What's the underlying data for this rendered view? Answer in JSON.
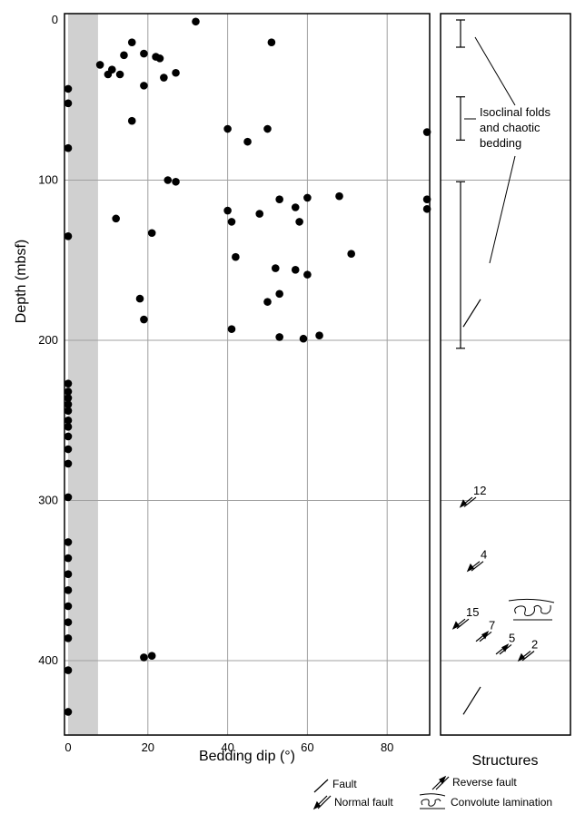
{
  "chart_data": {
    "type": "scatter",
    "xlabel": "Bedding dip (°)",
    "ylabel": "Depth (mbsf)",
    "xlim": [
      0,
      90
    ],
    "ylim": [
      450,
      0
    ],
    "x_ticks": [
      "0",
      "20",
      "40",
      "60",
      "80"
    ],
    "y_ticks": [
      "0",
      "100",
      "200",
      "300",
      "400"
    ],
    "grid": true,
    "shaded_band": {
      "from": 0,
      "to": 7.5,
      "color": "#d0d0d0"
    },
    "points": [
      {
        "x": 32,
        "y": 1
      },
      {
        "x": 51,
        "y": 14
      },
      {
        "x": 16,
        "y": 14
      },
      {
        "x": 19,
        "y": 21
      },
      {
        "x": 14,
        "y": 22
      },
      {
        "x": 22,
        "y": 23
      },
      {
        "x": 23,
        "y": 24
      },
      {
        "x": 8,
        "y": 28
      },
      {
        "x": 11,
        "y": 31
      },
      {
        "x": 10,
        "y": 34
      },
      {
        "x": 13,
        "y": 34
      },
      {
        "x": 27,
        "y": 33
      },
      {
        "x": 24,
        "y": 36
      },
      {
        "x": 19,
        "y": 41
      },
      {
        "x": 0,
        "y": 43
      },
      {
        "x": 0,
        "y": 52
      },
      {
        "x": 16,
        "y": 63
      },
      {
        "x": 40,
        "y": 68
      },
      {
        "x": 50,
        "y": 68
      },
      {
        "x": 90,
        "y": 70
      },
      {
        "x": 45,
        "y": 76
      },
      {
        "x": 0,
        "y": 80
      },
      {
        "x": 25,
        "y": 100
      },
      {
        "x": 27,
        "y": 101
      },
      {
        "x": 68,
        "y": 110
      },
      {
        "x": 53,
        "y": 112
      },
      {
        "x": 60,
        "y": 111
      },
      {
        "x": 90,
        "y": 112
      },
      {
        "x": 57,
        "y": 117
      },
      {
        "x": 90,
        "y": 118
      },
      {
        "x": 40,
        "y": 119
      },
      {
        "x": 48,
        "y": 121
      },
      {
        "x": 41,
        "y": 126
      },
      {
        "x": 58,
        "y": 126
      },
      {
        "x": 12,
        "y": 124
      },
      {
        "x": 21,
        "y": 133
      },
      {
        "x": 0,
        "y": 135
      },
      {
        "x": 71,
        "y": 146
      },
      {
        "x": 42,
        "y": 148
      },
      {
        "x": 52,
        "y": 155
      },
      {
        "x": 57,
        "y": 156
      },
      {
        "x": 60,
        "y": 159
      },
      {
        "x": 53,
        "y": 171
      },
      {
        "x": 18,
        "y": 174
      },
      {
        "x": 50,
        "y": 176
      },
      {
        "x": 19,
        "y": 187
      },
      {
        "x": 41,
        "y": 193
      },
      {
        "x": 53,
        "y": 198
      },
      {
        "x": 59,
        "y": 199
      },
      {
        "x": 63,
        "y": 197
      },
      {
        "x": 0,
        "y": 227
      },
      {
        "x": 0,
        "y": 232
      },
      {
        "x": 0,
        "y": 236
      },
      {
        "x": 0,
        "y": 240
      },
      {
        "x": 0,
        "y": 244
      },
      {
        "x": 0,
        "y": 250
      },
      {
        "x": 0,
        "y": 254
      },
      {
        "x": 0,
        "y": 260
      },
      {
        "x": 0,
        "y": 268
      },
      {
        "x": 0,
        "y": 277
      },
      {
        "x": 0,
        "y": 298
      },
      {
        "x": 0,
        "y": 326
      },
      {
        "x": 0,
        "y": 336
      },
      {
        "x": 0,
        "y": 346
      },
      {
        "x": 0,
        "y": 356
      },
      {
        "x": 0,
        "y": 366
      },
      {
        "x": 0,
        "y": 376
      },
      {
        "x": 0,
        "y": 386
      },
      {
        "x": 19,
        "y": 398
      },
      {
        "x": 21,
        "y": 397
      },
      {
        "x": 0,
        "y": 406
      },
      {
        "x": 0,
        "y": 432
      }
    ]
  },
  "structures": {
    "title": "Structures",
    "annotation_lines": [
      "Isoclinal folds",
      "and chaotic",
      "bedding"
    ],
    "fold_intervals": [
      [
        0,
        17
      ],
      [
        48,
        75
      ],
      [
        101,
        205
      ]
    ],
    "faults": [
      {
        "type": "fault",
        "depth": 183
      },
      {
        "type": "normal",
        "depth": 301,
        "label": "12"
      },
      {
        "type": "normal",
        "depth": 341,
        "label": "4"
      },
      {
        "type": "normal",
        "depth": 377,
        "label": "15"
      },
      {
        "type": "reverse",
        "depth": 385,
        "label": "7"
      },
      {
        "type": "reverse",
        "depth": 393,
        "label": "5"
      },
      {
        "type": "normal",
        "depth": 397,
        "label": "2"
      },
      {
        "type": "fault",
        "depth": 425
      }
    ],
    "convolute_depth": 367
  },
  "legend": {
    "fault": "Fault",
    "normal_fault": "Normal fault",
    "reverse_fault": "Reverse fault",
    "convolute_lamination": "Convolute lamination"
  }
}
